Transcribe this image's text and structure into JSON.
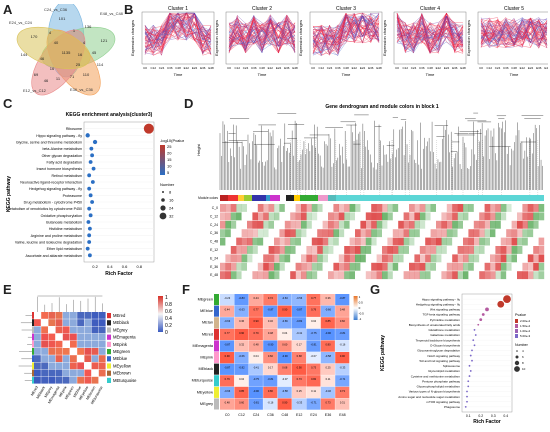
{
  "panel_labels": [
    "A",
    "B",
    "C",
    "D",
    "E",
    "F",
    "G"
  ],
  "venn": {
    "sets": [
      "C24_vs_C36",
      "E48_vs_C48",
      "E24_vs_C24",
      "E12_vs_C12",
      "E36_vs_C36"
    ],
    "colors": [
      "#7ab6e0",
      "#8fd08f",
      "#f3a15a",
      "#e98b8b",
      "#d9c25a"
    ],
    "counts": [
      "101",
      "136",
      "1",
      "121",
      "170",
      "144",
      "4",
      "1135",
      "114",
      "45",
      "4",
      "25",
      "16",
      "46",
      "11",
      "46",
      "69",
      "71",
      "110",
      "40",
      "16"
    ]
  },
  "clusters": {
    "titles": [
      "Cluster 1",
      "Cluster 2",
      "Cluster 3",
      "Cluster 4",
      "Cluster 5"
    ],
    "xlabel": "Time",
    "ylabel": "Expression changes",
    "ticks": [
      "C0",
      "C12",
      "C24",
      "C36",
      "C48",
      "E12",
      "E24",
      "E36",
      "E48"
    ]
  },
  "kegg": {
    "title": "KEGG enrichment analysis(cluster3)",
    "ylabel": "KEGG pathway",
    "xlabel": "Rich Factor",
    "xticks": [
      "0.2",
      "0.4",
      "0.6",
      "0.8"
    ],
    "legend_color_title": "-log10(Pvalue)",
    "legend_color_ticks": [
      "25",
      "20",
      "15",
      "10",
      "5"
    ],
    "legend_size_title": "Number",
    "legend_size_ticks": [
      "8",
      "16",
      "24",
      "32"
    ],
    "pathways": [
      "Ribosome",
      "Hippo signaling pathway - fly",
      "Glycine, serine and threonine metabolism",
      "beta-Alanine metabolism",
      "Other glycan degradation",
      "Fatty acid degradation",
      "Insect hormone biosynthesis",
      "Retinol metabolism",
      "Neuroactive ligand-receptor interaction",
      "Hedgehog signaling pathway - fly",
      "Proteasome",
      "Drug metabolism - cytochrome P450",
      "Metabolism of xenobiotics by cytochrome P450",
      "Oxidative phosphorylation",
      "Butanoate metabolism",
      "Histidine metabolism",
      "Arginine and proline metabolism",
      "Valine, leucine and isoleucine degradation",
      "Ether lipid metabolism",
      "Ascorbate and aldarate metabolism"
    ],
    "rich": [
      0.93,
      0.1,
      0.2,
      0.15,
      0.16,
      0.14,
      0.18,
      0.12,
      0.17,
      0.12,
      0.14,
      0.16,
      0.12,
      0.14,
      0.11,
      0.13,
      0.12,
      0.12,
      0.1,
      0.13
    ],
    "number": [
      32,
      8,
      8,
      6,
      6,
      6,
      6,
      6,
      6,
      6,
      6,
      6,
      6,
      6,
      6,
      6,
      6,
      6,
      6,
      6
    ],
    "logp": [
      25,
      2,
      2,
      2,
      2,
      2,
      2,
      2,
      2,
      2,
      2,
      2,
      2,
      2,
      2,
      2,
      2,
      2,
      2,
      2
    ]
  },
  "dendro": {
    "title": "Gene dendrogram and module colors in block 1",
    "ylabel": "Height",
    "module_label": "Module colors",
    "rows": [
      "C_0",
      "C_12",
      "C_24",
      "C_36",
      "C_48",
      "E_12",
      "E_24",
      "E_36",
      "E_48"
    ]
  },
  "eigen": {
    "modules": [
      "MEred",
      "MEblack",
      "MEgrey",
      "MEmagenta",
      "MEpink",
      "MEgreen",
      "MEblue",
      "MEyellow",
      "MEbrown",
      "MEturquoise"
    ],
    "legend_ticks": [
      "1",
      "0.8",
      "0.6",
      "0.4",
      "0.2",
      "0"
    ]
  },
  "trait": {
    "modules": [
      "MEgreen",
      "MEblue",
      "MEtan",
      "MEred",
      "MEmagenta",
      "MEpink",
      "MEblack",
      "MEturquoise",
      "MEyellow",
      "MEgrey"
    ],
    "cols": [
      "C0",
      "C12",
      "C24",
      "C36",
      "C48",
      "E12",
      "E24",
      "E36",
      "E48"
    ],
    "legend_ticks": [
      "1",
      "0.5",
      "0",
      "-0.5",
      "-1"
    ]
  },
  "kegg2": {
    "ylabel": "KEGG pathway",
    "xlabel": "Rich Factor",
    "xticks": [
      "0.1",
      "0.2",
      "0.3",
      "0.4"
    ],
    "legend_color_title": "Pvalue",
    "legend_color_ticks": [
      "2.00e-2",
      "1.50e-2",
      "1.00e-2",
      "5.00e-3"
    ],
    "legend_size_title": "Number",
    "legend_size_ticks": [
      "4",
      "6",
      "8",
      "10"
    ],
    "pathways": [
      "Hippo signaling pathway - fly",
      "Hedgehog signaling pathway - fly",
      "Wnt signaling pathway",
      "TGF-beta signaling pathway",
      "Pyrimidine metabolism",
      "Biosynthesis of unsaturated fatty acids",
      "Glutathione metabolism",
      "Galactose metabolism",
      "Terpenoid backbone biosynthesis",
      "O-Glycan biosynthesis",
      "Glycosaminoglycan degradation",
      "Notch signaling pathway",
      "Toll and Imd signaling pathway",
      "Spliceosome",
      "Glycerolipid metabolism",
      "Cysteine and methionine metabolism",
      "Pentose phosphate pathway",
      "Glycerophospholipid metabolism",
      "Various types of N-glycan biosynthesis",
      "Amino sugar and nucleotide sugar metabolism",
      "mTOR signaling pathway",
      "Phagosome"
    ],
    "rich": [
      0.41,
      0.36,
      0.25,
      0.22,
      0.2,
      0.18,
      0.15,
      0.16,
      0.14,
      0.15,
      0.13,
      0.12,
      0.13,
      0.11,
      0.12,
      0.11,
      0.1,
      0.1,
      0.09,
      0.09,
      0.09,
      0.08
    ],
    "number": [
      10,
      9,
      6,
      5,
      5,
      4,
      4,
      4,
      4,
      4,
      4,
      4,
      4,
      4,
      4,
      4,
      4,
      4,
      4,
      4,
      4,
      4
    ],
    "pval": [
      0.001,
      0.002,
      0.008,
      0.01,
      0.012,
      0.015,
      0.016,
      0.016,
      0.017,
      0.017,
      0.018,
      0.018,
      0.018,
      0.019,
      0.019,
      0.019,
      0.02,
      0.02,
      0.02,
      0.02,
      0.02,
      0.02
    ]
  }
}
